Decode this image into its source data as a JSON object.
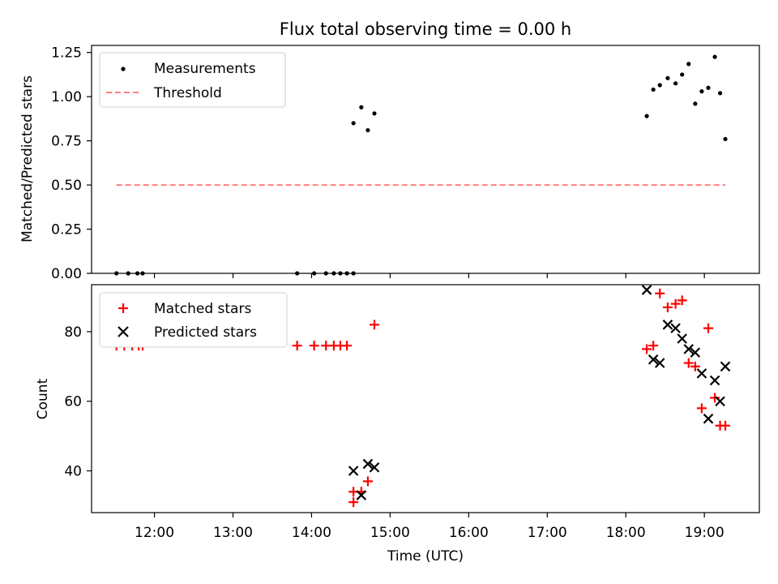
{
  "figure": {
    "title": "Flux total observing time = 0.00 h",
    "xlabel": "Time (UTC)"
  },
  "chart_data": [
    {
      "type": "scatter",
      "ylabel": "Matched/Predicted stars",
      "xlim": [
        "11:12",
        "19:42"
      ],
      "ylim": [
        0,
        1.29
      ],
      "yticks": [
        "0.00",
        "0.25",
        "0.50",
        "0.75",
        "1.00",
        "1.25"
      ],
      "legend_position": "top-left",
      "grid": false,
      "series": [
        {
          "name": "Measurements",
          "kind": "points",
          "color": "#000000",
          "x": [
            "11:31",
            "11:40",
            "11:47",
            "11:51",
            "13:49",
            "14:02",
            "14:11",
            "14:17",
            "14:22",
            "14:27",
            "14:32",
            "14:32",
            "14:38",
            "14:43",
            "14:48",
            "18:16",
            "18:21",
            "18:26",
            "18:32",
            "18:38",
            "18:43",
            "18:48",
            "18:53",
            "18:58",
            "19:03",
            "19:08",
            "19:12",
            "19:16"
          ],
          "y": [
            0,
            0,
            0,
            0,
            0,
            0,
            0,
            0,
            0,
            0,
            0,
            0.85,
            0.94,
            0.81,
            0.905,
            0.89,
            1.04,
            1.065,
            1.105,
            1.075,
            1.125,
            1.185,
            0.96,
            1.03,
            1.05,
            1.225,
            1.02,
            0.76
          ]
        },
        {
          "name": "Threshold",
          "kind": "dashed-line",
          "color": "#ff7f7f",
          "x": [
            "11:31",
            "19:16"
          ],
          "y": [
            0.5,
            0.5
          ]
        }
      ]
    },
    {
      "type": "scatter",
      "ylabel": "Count",
      "xlim": [
        "11:12",
        "19:42"
      ],
      "ylim": [
        28,
        93.5
      ],
      "yticks": [
        "40",
        "60",
        "80"
      ],
      "xticks": [
        "12:00",
        "13:00",
        "14:00",
        "15:00",
        "16:00",
        "17:00",
        "18:00",
        "19:00"
      ],
      "legend_position": "top-left",
      "grid": false,
      "series": [
        {
          "name": "Matched stars",
          "marker": "plus",
          "color": "#ff0000",
          "x": [
            "11:31",
            "11:37",
            "11:43",
            "11:48",
            "11:51",
            "13:49",
            "14:02",
            "14:11",
            "14:17",
            "14:22",
            "14:27",
            "14:32",
            "14:32",
            "14:38",
            "14:43",
            "14:48",
            "18:16",
            "18:21",
            "18:26",
            "18:32",
            "18:38",
            "18:43",
            "18:48",
            "18:53",
            "18:58",
            "19:03",
            "19:08",
            "19:12",
            "19:16"
          ],
          "y": [
            76,
            76,
            76,
            76,
            76,
            76,
            76,
            76,
            76,
            76,
            76,
            34,
            31,
            34,
            37,
            82,
            75,
            76,
            91,
            87,
            88,
            89,
            71,
            70,
            58,
            81,
            61,
            53,
            53
          ],
          "note": "values read from markers"
        },
        {
          "name": "Predicted stars",
          "marker": "x",
          "color": "#000000",
          "x": [
            "14:32",
            "14:38",
            "14:43",
            "14:48",
            "18:16",
            "18:21",
            "18:26",
            "18:32",
            "18:38",
            "18:43",
            "18:48",
            "18:53",
            "18:58",
            "19:03",
            "19:08",
            "19:12",
            "19:16"
          ],
          "y": [
            40,
            33,
            42,
            41,
            92,
            72,
            71,
            82,
            81,
            78,
            75,
            74,
            68,
            55,
            66,
            60,
            70
          ]
        }
      ]
    }
  ]
}
